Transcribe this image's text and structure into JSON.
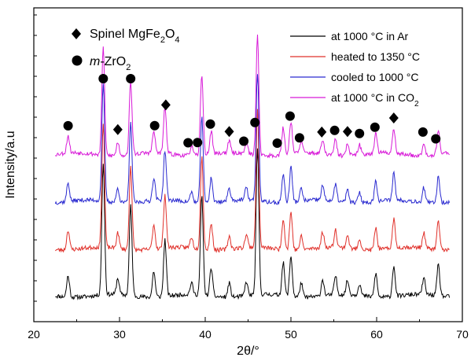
{
  "chart_data": {
    "type": "line",
    "xlabel": "2θ/°",
    "ylabel": "Intensity/a.u",
    "xlim": [
      20,
      70
    ],
    "x_ticks": [
      "20",
      "30",
      "40",
      "50",
      "60",
      "70"
    ],
    "grid": false,
    "legend_position": "top-right",
    "phase_legend": [
      {
        "symbol": "diamond",
        "label": "Spinel MgFe",
        "sub1": "2",
        "mid": "O",
        "sub2": "4"
      },
      {
        "symbol": "circle",
        "label_italic": "m",
        "label": "-ZrO",
        "sub1": "2"
      }
    ],
    "series": [
      {
        "name": "at 1000 °C in Ar",
        "color": "#000000",
        "baseline": 0.0,
        "noise_seed": 11
      },
      {
        "name": "heated to 1350 °C",
        "color": "#e0302a",
        "baseline": 1.0,
        "noise_seed": 23
      },
      {
        "name": "cooled to 1000 °C",
        "color": "#2a2ad0",
        "baseline": 2.0,
        "noise_seed": 37
      },
      {
        "name": "at 1000 °C in CO",
        "name_sub": "2",
        "color": "#d81ad8",
        "baseline": 3.0,
        "noise_seed": 53
      }
    ],
    "peaks": [
      {
        "x": 24.0,
        "h": 0.45
      },
      {
        "x": 28.1,
        "h": 2.8
      },
      {
        "x": 29.8,
        "h": 0.35
      },
      {
        "x": 31.3,
        "h": 1.9
      },
      {
        "x": 34.0,
        "h": 0.55
      },
      {
        "x": 35.3,
        "h": 1.2
      },
      {
        "x": 38.4,
        "h": 0.25
      },
      {
        "x": 39.6,
        "h": 2.1
      },
      {
        "x": 40.7,
        "h": 0.6
      },
      {
        "x": 42.8,
        "h": 0.3
      },
      {
        "x": 44.8,
        "h": 0.3
      },
      {
        "x": 46.1,
        "h": 3.1
      },
      {
        "x": 49.1,
        "h": 0.7
      },
      {
        "x": 50.0,
        "h": 0.85
      },
      {
        "x": 51.2,
        "h": 0.3
      },
      {
        "x": 53.7,
        "h": 0.35
      },
      {
        "x": 55.2,
        "h": 0.4
      },
      {
        "x": 56.6,
        "h": 0.3
      },
      {
        "x": 58.0,
        "h": 0.25
      },
      {
        "x": 59.9,
        "h": 0.5
      },
      {
        "x": 62.0,
        "h": 0.65
      },
      {
        "x": 65.5,
        "h": 0.35
      },
      {
        "x": 67.2,
        "h": 0.65
      }
    ],
    "markers": [
      {
        "x": 24.0,
        "symbol": "circle"
      },
      {
        "x": 28.1,
        "symbol": "circle"
      },
      {
        "x": 29.8,
        "symbol": "diamond"
      },
      {
        "x": 31.3,
        "symbol": "circle"
      },
      {
        "x": 34.1,
        "symbol": "circle"
      },
      {
        "x": 35.4,
        "symbol": "diamond"
      },
      {
        "x": 38.0,
        "symbol": "circle"
      },
      {
        "x": 39.1,
        "symbol": "circle"
      },
      {
        "x": 40.6,
        "symbol": "circle"
      },
      {
        "x": 42.8,
        "symbol": "diamond"
      },
      {
        "x": 44.5,
        "symbol": "circle"
      },
      {
        "x": 45.8,
        "symbol": "circle"
      },
      {
        "x": 48.4,
        "symbol": "circle"
      },
      {
        "x": 49.9,
        "symbol": "circle"
      },
      {
        "x": 51.0,
        "symbol": "circle"
      },
      {
        "x": 53.6,
        "symbol": "diamond"
      },
      {
        "x": 55.1,
        "symbol": "circle"
      },
      {
        "x": 56.6,
        "symbol": "diamond"
      },
      {
        "x": 58.0,
        "symbol": "circle"
      },
      {
        "x": 59.8,
        "symbol": "circle"
      },
      {
        "x": 62.0,
        "symbol": "diamond"
      },
      {
        "x": 65.4,
        "symbol": "circle"
      },
      {
        "x": 66.9,
        "symbol": "circle"
      }
    ]
  }
}
